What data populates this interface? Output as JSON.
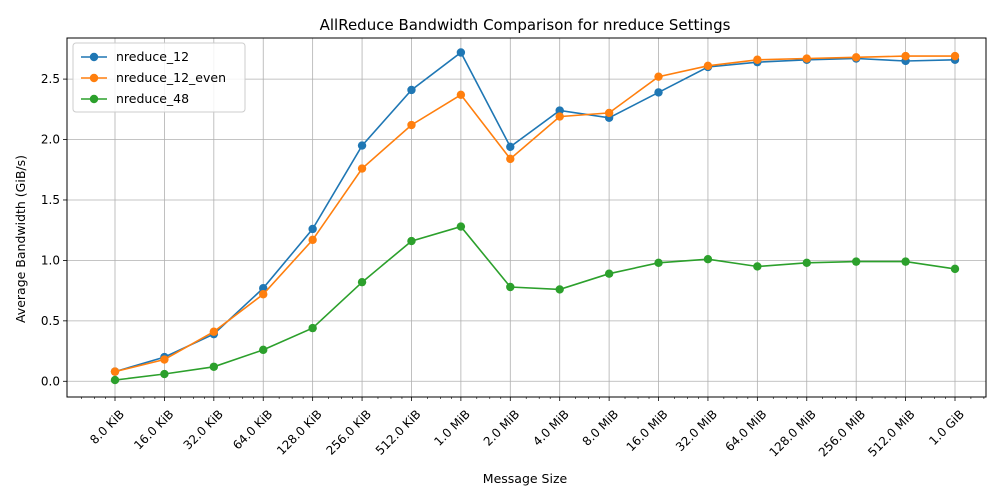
{
  "chart_data": {
    "type": "line",
    "title": "AllReduce Bandwidth Comparison for nreduce Settings",
    "xlabel": "Message Size",
    "ylabel": "Average Bandwidth (GiB/s)",
    "x_scale": "log2",
    "categories": [
      "8.0 KiB",
      "16.0 KiB",
      "32.0 KiB",
      "64.0 KiB",
      "128.0 KiB",
      "256.0 KiB",
      "512.0 KiB",
      "1.0 MiB",
      "2.0 MiB",
      "4.0 MiB",
      "8.0 MiB",
      "16.0 MiB",
      "32.0 MiB",
      "64.0 MiB",
      "128.0 MiB",
      "256.0 MiB",
      "512.0 MiB",
      "1.0 GiB"
    ],
    "ylim": [
      -0.13,
      2.84
    ],
    "yticks": [
      0.0,
      0.5,
      1.0,
      1.5,
      2.0,
      2.5
    ],
    "ytick_labels": [
      "0.0",
      "0.5",
      "1.0",
      "1.5",
      "2.0",
      "2.5"
    ],
    "grid": true,
    "legend_position": "top-left",
    "series": [
      {
        "name": "nreduce_12",
        "color": "#1f77b4",
        "values": [
          0.08,
          0.2,
          0.39,
          0.77,
          1.26,
          1.95,
          2.41,
          2.72,
          1.94,
          2.24,
          2.18,
          2.39,
          2.6,
          2.64,
          2.66,
          2.67,
          2.65,
          2.66
        ]
      },
      {
        "name": "nreduce_12_even",
        "color": "#ff7f0e",
        "values": [
          0.08,
          0.18,
          0.41,
          0.72,
          1.17,
          1.76,
          2.12,
          2.37,
          1.84,
          2.19,
          2.22,
          2.52,
          2.61,
          2.66,
          2.67,
          2.68,
          2.69,
          2.69
        ]
      },
      {
        "name": "nreduce_48",
        "color": "#2ca02c",
        "values": [
          0.01,
          0.06,
          0.12,
          0.26,
          0.44,
          0.82,
          1.16,
          1.28,
          0.78,
          0.76,
          0.89,
          0.98,
          1.01,
          0.95,
          0.98,
          0.99,
          0.99,
          0.93
        ]
      }
    ]
  }
}
